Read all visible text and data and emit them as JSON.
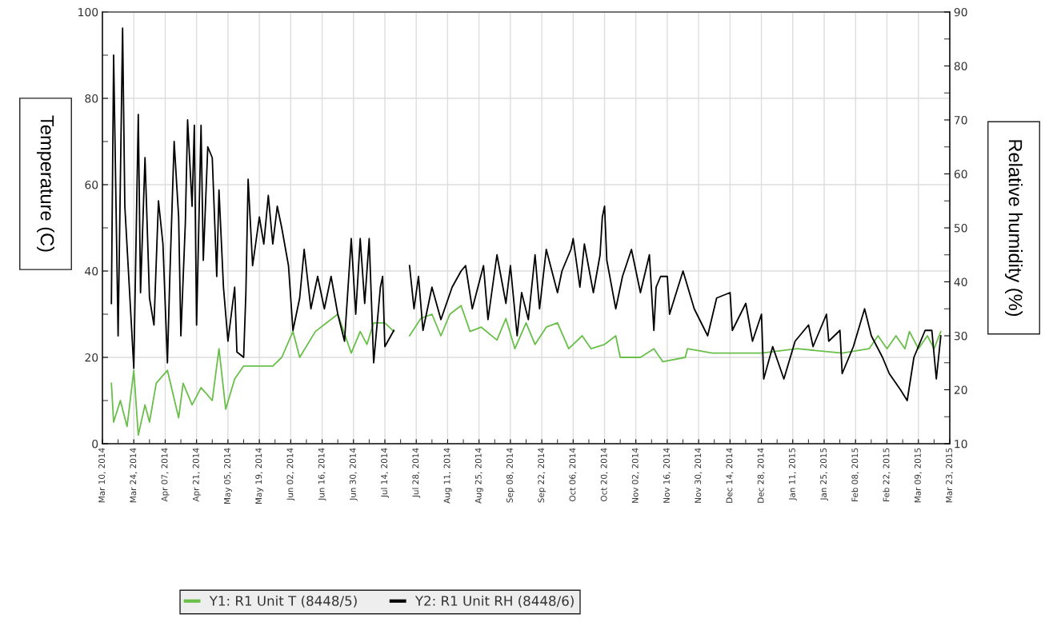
{
  "chart_data": {
    "type": "line",
    "ylabel": "Temperature (C)",
    "y2label": "Relative humidity (%)",
    "xlim": [
      "2014-03-10",
      "2015-03-23"
    ],
    "xticks": [
      {
        "value": "2014-03-10",
        "label": "Mar 10, 2014"
      },
      {
        "value": "2014-03-17",
        "label": null
      },
      {
        "value": "2014-03-24",
        "label": "Mar 24, 2014"
      },
      {
        "value": "2014-03-31",
        "label": null
      },
      {
        "value": "2014-04-07",
        "label": "Apr 07, 2014"
      },
      {
        "value": "2014-04-14",
        "label": null
      },
      {
        "value": "2014-04-21",
        "label": "Apr 21, 2014"
      },
      {
        "value": "2014-04-28",
        "label": null
      },
      {
        "value": "2014-05-05",
        "label": "May 05, 2014"
      },
      {
        "value": "2014-05-12",
        "label": null
      },
      {
        "value": "2014-05-19",
        "label": "May 19, 2014"
      },
      {
        "value": "2014-05-26",
        "label": null
      },
      {
        "value": "2014-06-02",
        "label": "Jun 02, 2014"
      },
      {
        "value": "2014-06-09",
        "label": null
      },
      {
        "value": "2014-06-16",
        "label": "Jun 16, 2014"
      },
      {
        "value": "2014-06-23",
        "label": null
      },
      {
        "value": "2014-06-30",
        "label": "Jun 30, 2014"
      },
      {
        "value": "2014-07-07",
        "label": null
      },
      {
        "value": "2014-07-14",
        "label": "Jul 14, 2014"
      },
      {
        "value": "2014-07-21",
        "label": null
      },
      {
        "value": "2014-07-28",
        "label": "Jul 28, 2014"
      },
      {
        "value": "2014-08-04",
        "label": null
      },
      {
        "value": "2014-08-11",
        "label": "Aug 11, 2014"
      },
      {
        "value": "2014-08-18",
        "label": null
      },
      {
        "value": "2014-08-25",
        "label": "Aug 25, 2014"
      },
      {
        "value": "2014-09-01",
        "label": null
      },
      {
        "value": "2014-09-08",
        "label": "Sep 08, 2014"
      },
      {
        "value": "2014-09-15",
        "label": null
      },
      {
        "value": "2014-09-22",
        "label": "Sep 22, 2014"
      },
      {
        "value": "2014-09-29",
        "label": null
      },
      {
        "value": "2014-10-06",
        "label": "Oct 06, 2014"
      },
      {
        "value": "2014-10-13",
        "label": null
      },
      {
        "value": "2014-10-20",
        "label": "Oct 20, 2014"
      },
      {
        "value": "2014-10-27",
        "label": null
      },
      {
        "value": "2014-11-02T23:00",
        "label": "Nov 02, 2014"
      },
      {
        "value": "2014-11-09T23:00",
        "label": null
      },
      {
        "value": "2014-11-16T23:00",
        "label": "Nov 16, 2014"
      },
      {
        "value": "2014-11-23T23:00",
        "label": null
      },
      {
        "value": "2014-11-30T23:00",
        "label": "Nov 30, 2014"
      },
      {
        "value": "2014-12-07T23:00",
        "label": null
      },
      {
        "value": "2014-12-14T23:00",
        "label": "Dec 14, 2014"
      },
      {
        "value": "2014-12-21T23:00",
        "label": null
      },
      {
        "value": "2014-12-28T23:00",
        "label": "Dec 28, 2014"
      },
      {
        "value": "2015-01-04T23:00",
        "label": null
      },
      {
        "value": "2015-01-11T23:00",
        "label": "Jan 11, 2015"
      },
      {
        "value": "2015-01-18T23:00",
        "label": null
      },
      {
        "value": "2015-01-25T23:00",
        "label": "Jan 25, 2015"
      },
      {
        "value": "2015-02-01T23:00",
        "label": null
      },
      {
        "value": "2015-02-08T23:00",
        "label": "Feb 08, 2015"
      },
      {
        "value": "2015-02-15T23:00",
        "label": null
      },
      {
        "value": "2015-02-22T23:00",
        "label": "Feb 22, 2015"
      },
      {
        "value": "2015-03-02",
        "label": null
      },
      {
        "value": "2015-03-09",
        "label": "Mar 09, 2015"
      },
      {
        "value": "2015-03-16",
        "label": null
      },
      {
        "value": "2015-03-23",
        "label": "Mar 23, 2015"
      }
    ],
    "ylim": [
      0,
      100
    ],
    "yticks": [
      0,
      {
        "value": 10,
        "label": null
      },
      20,
      {
        "value": 30,
        "label": null
      },
      40,
      {
        "value": 50,
        "label": null
      },
      60,
      {
        "value": 70,
        "label": null
      },
      80,
      {
        "value": 90,
        "label": null
      },
      100
    ],
    "y2lim": [
      10,
      90
    ],
    "y2ticks": [
      10,
      {
        "value": 15,
        "label": null
      },
      20,
      {
        "value": 25,
        "label": null
      },
      30,
      {
        "value": 35,
        "label": null
      },
      40,
      {
        "value": 45,
        "label": null
      },
      50,
      {
        "value": 55,
        "label": null
      },
      60,
      {
        "value": 65,
        "label": null
      },
      70,
      {
        "value": 75,
        "label": null
      },
      80,
      {
        "value": 85,
        "label": null
      },
      90
    ],
    "grid": true,
    "legend": "bottom",
    "marker": "none",
    "line_style": "solid",
    "series": [
      {
        "name": "Y1: R1 Unit T (8448/5)",
        "color": "#6abf4b",
        "x": [
          "2014-03-14",
          "2014-03-15",
          "2014-03-18",
          "2014-03-21",
          "2014-03-24",
          "2014-03-26",
          "2014-03-29",
          "2014-03-31",
          "2014-04-03",
          "2014-04-08",
          "2014-04-13",
          "2014-04-15",
          "2014-04-19",
          "2014-04-23",
          "2014-04-28",
          "2014-05-01",
          "2014-05-04",
          "2014-05-08",
          "2014-05-12",
          "2014-05-19",
          "2014-05-25",
          "2014-05-29",
          "2014-06-03",
          "2014-06-06",
          "2014-06-13",
          "2014-06-18",
          "2014-06-23",
          "2014-06-29",
          "2014-07-03",
          "2014-07-06",
          "2014-07-09",
          "2014-07-14",
          "2014-07-18",
          "2014-07-22",
          "2014-07-25",
          "2014-07-30",
          "2014-08-04",
          "2014-08-08",
          "2014-08-12",
          "2014-08-17",
          "2014-08-21",
          "2014-08-26",
          "2014-09-02",
          "2014-09-06",
          "2014-09-10",
          "2014-09-15",
          "2014-09-19",
          "2014-09-24",
          "2014-09-29",
          "2014-10-04",
          "2014-10-10",
          "2014-10-14",
          "2014-10-20",
          "2014-10-25",
          "2014-10-27",
          "2014-11-05",
          "2014-11-11",
          "2014-11-15",
          "2014-11-25",
          "2014-11-26",
          "2014-12-07",
          "2014-12-29",
          "2015-01-14",
          "2015-02-03",
          "2015-02-15",
          "2015-02-19",
          "2015-02-23",
          "2015-02-27",
          "2015-03-03",
          "2015-03-05",
          "2015-03-09",
          "2015-03-13",
          "2015-03-16",
          "2015-03-19"
        ],
        "values": [
          14,
          5,
          10,
          4,
          17,
          2,
          9,
          5,
          14,
          17,
          6,
          14,
          9,
          13,
          10,
          22,
          8,
          15,
          18,
          18,
          18,
          20,
          26,
          20,
          26,
          28,
          30,
          21,
          26,
          23,
          28,
          28,
          26,
          null,
          25,
          29,
          30,
          25,
          30,
          32,
          26,
          27,
          24,
          29,
          22,
          28,
          23,
          27,
          28,
          22,
          25,
          22,
          23,
          25,
          20,
          20,
          22,
          19,
          20,
          22,
          21,
          21,
          22,
          21,
          22,
          25,
          22,
          25,
          22,
          26,
          22,
          25,
          22,
          26
        ]
      },
      {
        "name": "Y2: R1 Unit RH (8448/6)",
        "color": "#000000",
        "axis": "y2",
        "x": [
          "2014-03-14",
          "2014-03-15",
          "2014-03-17",
          "2014-03-19",
          "2014-03-20",
          "2014-03-24",
          "2014-03-26",
          "2014-03-27",
          "2014-03-29",
          "2014-03-31",
          "2014-04-02",
          "2014-04-04",
          "2014-04-06",
          "2014-04-08",
          "2014-04-09",
          "2014-04-11",
          "2014-04-13",
          "2014-04-14",
          "2014-04-16",
          "2014-04-17",
          "2014-04-19",
          "2014-04-20",
          "2014-04-21",
          "2014-04-23",
          "2014-04-24",
          "2014-04-26",
          "2014-04-28",
          "2014-04-30",
          "2014-05-01",
          "2014-05-03",
          "2014-05-05",
          "2014-05-08",
          "2014-05-09",
          "2014-05-12",
          "2014-05-13",
          "2014-05-14",
          "2014-05-16",
          "2014-05-19",
          "2014-05-21",
          "2014-05-23",
          "2014-05-25",
          "2014-05-27",
          "2014-05-29",
          "2014-06-01",
          "2014-06-03",
          "2014-06-06",
          "2014-06-08",
          "2014-06-11",
          "2014-06-14",
          "2014-06-17",
          "2014-06-20",
          "2014-06-23",
          "2014-06-26",
          "2014-06-29",
          "2014-07-01",
          "2014-07-03",
          "2014-07-05",
          "2014-07-07",
          "2014-07-09",
          "2014-07-12",
          "2014-07-13",
          "2014-07-14",
          "2014-07-18",
          "2014-07-22",
          "2014-07-25",
          "2014-07-27",
          "2014-07-29",
          "2014-07-31",
          "2014-08-04",
          "2014-08-08",
          "2014-08-13",
          "2014-08-17",
          "2014-08-19",
          "2014-08-22",
          "2014-08-27",
          "2014-08-29",
          "2014-09-02",
          "2014-09-06",
          "2014-09-08",
          "2014-09-11",
          "2014-09-13",
          "2014-09-16",
          "2014-09-19",
          "2014-09-21",
          "2014-09-24",
          "2014-09-29",
          "2014-10-01",
          "2014-10-05",
          "2014-10-06",
          "2014-10-09",
          "2014-10-11",
          "2014-10-15",
          "2014-10-18",
          "2014-10-19",
          "2014-10-20",
          "2014-10-21",
          "2014-10-25",
          "2014-10-28",
          "2014-11-01",
          "2014-11-05",
          "2014-11-09",
          "2014-11-11",
          "2014-11-12",
          "2014-11-14",
          "2014-11-17",
          "2014-11-18",
          "2014-11-24",
          "2014-11-29",
          "2014-12-05",
          "2014-12-09",
          "2014-12-15",
          "2014-12-16",
          "2014-12-22",
          "2014-12-25",
          "2014-12-29",
          "2014-12-30",
          "2015-01-03",
          "2015-01-08",
          "2015-01-13",
          "2015-01-19",
          "2015-01-21",
          "2015-01-27",
          "2015-01-28",
          "2015-02-02",
          "2015-02-03",
          "2015-02-08",
          "2015-02-13",
          "2015-02-16",
          "2015-02-21",
          "2015-02-24",
          "2015-03-01",
          "2015-03-04",
          "2015-03-07",
          "2015-03-12",
          "2015-03-15",
          "2015-03-17",
          "2015-03-19"
        ],
        "values": [
          36,
          82,
          30,
          87,
          54,
          24,
          71,
          38,
          63,
          37,
          32,
          55,
          47,
          25,
          40,
          66,
          52,
          30,
          51,
          70,
          54,
          69,
          32,
          69,
          44,
          65,
          63,
          41,
          57,
          39,
          29,
          39,
          27,
          26,
          38,
          59,
          43,
          52,
          47,
          56,
          47,
          54,
          50,
          43,
          31,
          37,
          46,
          35,
          41,
          35,
          41,
          34,
          29,
          48,
          34,
          48,
          36,
          48,
          25,
          39,
          41,
          28,
          31,
          null,
          43,
          35,
          41,
          31,
          39,
          33,
          39,
          42,
          43,
          35,
          43,
          33,
          45,
          36,
          43,
          30,
          38,
          33,
          45,
          35,
          46,
          38,
          42,
          46,
          48,
          39,
          47,
          38,
          45,
          52,
          54,
          44,
          35,
          41,
          46,
          38,
          45,
          31,
          39,
          41,
          41,
          34,
          42,
          35,
          30,
          37,
          38,
          31,
          36,
          29,
          34,
          22,
          28,
          22,
          29,
          32,
          28,
          34,
          29,
          31,
          23,
          28,
          35,
          30,
          26,
          23,
          20,
          18,
          26,
          31,
          31,
          22,
          30
        ]
      }
    ]
  }
}
